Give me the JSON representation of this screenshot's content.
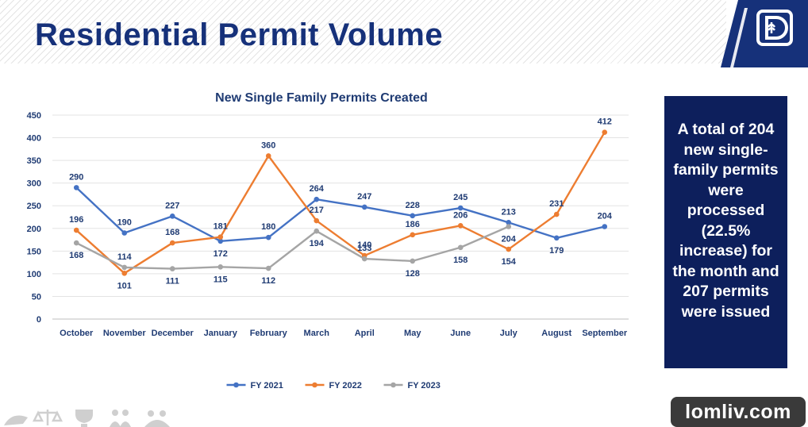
{
  "header": {
    "title": "Residential Permit Volume"
  },
  "logo": {
    "icon": "city-logo-icon",
    "colors": {
      "outer": "#16317a",
      "inner": "#ffffff"
    }
  },
  "callout": {
    "text": "A total of 204 new single-family permits were processed (22.5% increase) for the month and 207 permits were issued"
  },
  "watermark": {
    "text": "lomliv.com"
  },
  "footer": {
    "icons": [
      "handshake-icon",
      "scales-icon",
      "trophy-icon",
      "people-icon",
      "community-icon"
    ]
  },
  "chart_data": {
    "type": "line",
    "title": "New Single Family Permits Created",
    "xlabel": "",
    "ylabel": "",
    "categories": [
      "October",
      "November",
      "December",
      "January",
      "February",
      "March",
      "April",
      "May",
      "June",
      "July",
      "August",
      "September"
    ],
    "ylim": [
      0,
      450
    ],
    "yticks": [
      0,
      50,
      100,
      150,
      200,
      250,
      300,
      350,
      400,
      450
    ],
    "grid": true,
    "legend": "bottom",
    "series": [
      {
        "name": "FY 2021",
        "color": "#4472c4",
        "values": [
          290,
          190,
          227,
          172,
          180,
          264,
          247,
          228,
          245,
          213,
          179,
          204
        ]
      },
      {
        "name": "FY 2022",
        "color": "#ed7d31",
        "values": [
          196,
          101,
          168,
          181,
          360,
          217,
          140,
          186,
          206,
          154,
          231,
          412
        ]
      },
      {
        "name": "FY 2023",
        "color": "#a5a5a5",
        "values": [
          168,
          114,
          111,
          115,
          112,
          194,
          133,
          128,
          158,
          204,
          null,
          null
        ]
      }
    ]
  }
}
